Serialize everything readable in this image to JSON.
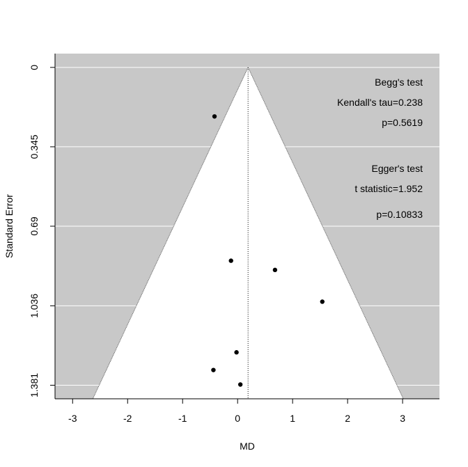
{
  "chart_data": {
    "type": "scatter",
    "title": "",
    "xlabel": "MD",
    "ylabel": "Standard Error",
    "x_ticks": [
      -3,
      -2,
      -1,
      0,
      1,
      2,
      3
    ],
    "x_tick_labels": [
      "-3",
      "-2",
      "-1",
      "0",
      "1",
      "2",
      "3"
    ],
    "y_ticks": [
      0,
      0.345,
      0.69,
      1.036,
      1.381
    ],
    "y_tick_labels": [
      "0",
      "0.345",
      "0.69",
      "1.036",
      "1.381"
    ],
    "xlim": [
      -3.32,
      3.67
    ],
    "ylim": [
      1.44,
      -0.06
    ],
    "y_reversed": true,
    "grid": "horizontal",
    "funnel": {
      "pooled_md": 0.19,
      "se_max": 1.44,
      "z": 1.96
    },
    "points": [
      {
        "x": -0.42,
        "y": 0.213
      },
      {
        "x": -0.12,
        "y": 0.84
      },
      {
        "x": 0.68,
        "y": 0.88
      },
      {
        "x": 1.54,
        "y": 1.018
      },
      {
        "x": -0.02,
        "y": 1.238
      },
      {
        "x": -0.44,
        "y": 1.315
      },
      {
        "x": 0.05,
        "y": 1.378
      }
    ],
    "annotations": {
      "begg_title": "Begg's test",
      "begg_tau": "Kendall's tau=0.238",
      "begg_p": "p=0.5619",
      "egger_title": "Egger's test",
      "egger_t": "t statistic=1.952",
      "egger_p": "p=0.10833"
    },
    "colors": {
      "background": "#c8c8c8",
      "funnel": "#ffffff",
      "grid": "#ffffff",
      "point": "#000000"
    }
  }
}
